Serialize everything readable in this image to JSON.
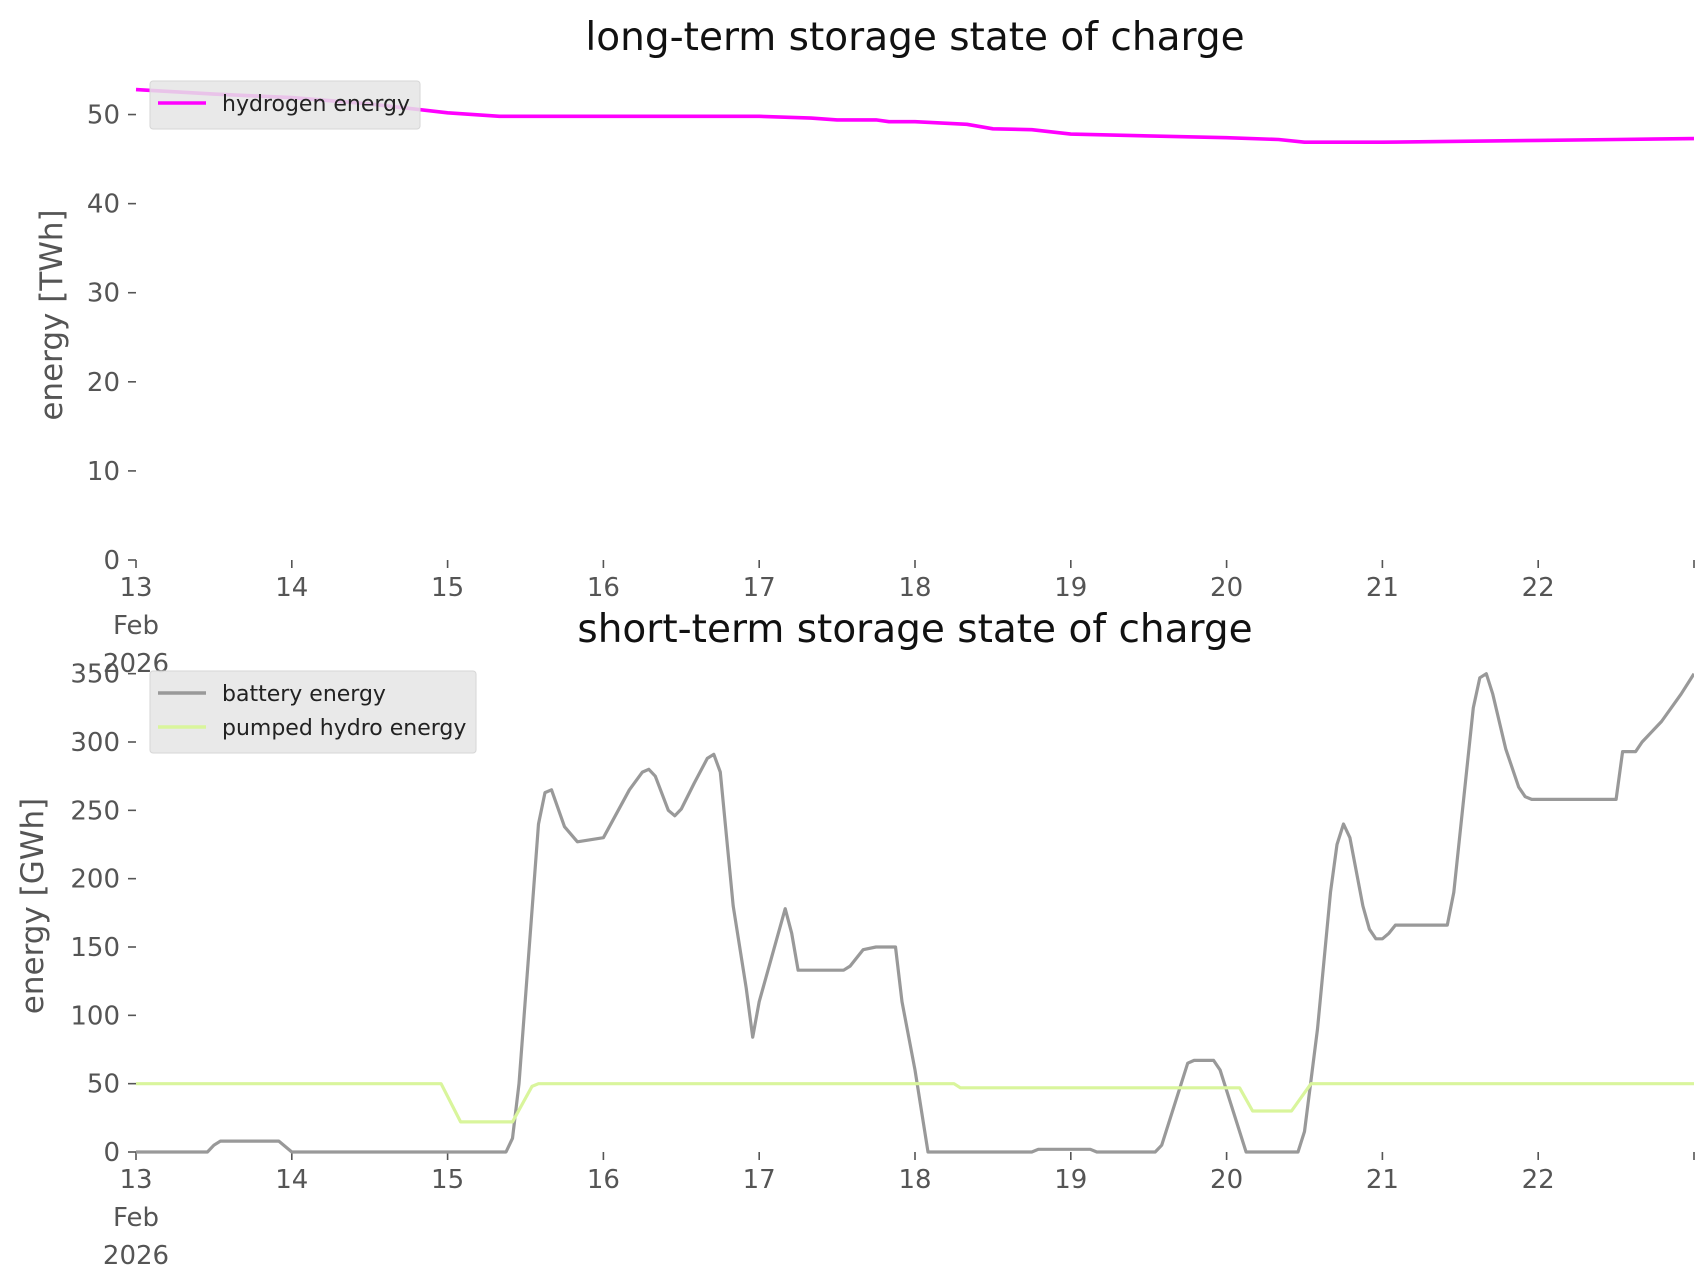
{
  "chart_data": [
    {
      "type": "line",
      "title": "long-term storage state of charge",
      "xlabel": "",
      "ylabel": "energy [TWh]",
      "x_range": [
        "2026-02-13",
        "2026-02-23"
      ],
      "ylim": [
        0,
        55
      ],
      "y_ticks": [
        "0",
        "10",
        "20",
        "30",
        "40",
        "50"
      ],
      "x_tick_labels": [
        "13\nFeb\n2026",
        "14",
        "15",
        "16",
        "17",
        "18",
        "19",
        "20",
        "21",
        "22"
      ],
      "grid": false,
      "legend_position": "top-left",
      "series": [
        {
          "name": "hydrogen energy",
          "color": "#ff00ff",
          "points": [
            [
              "2026-02-13 00:00",
              52.8
            ],
            [
              "2026-02-13 12:00",
              52.3
            ],
            [
              "2026-02-14 00:00",
              51.9
            ],
            [
              "2026-02-14 12:00",
              51.2
            ],
            [
              "2026-02-15 00:00",
              50.2
            ],
            [
              "2026-02-15 08:00",
              49.8
            ],
            [
              "2026-02-16 00:00",
              49.8
            ],
            [
              "2026-02-16 12:00",
              49.8
            ],
            [
              "2026-02-17 00:00",
              49.8
            ],
            [
              "2026-02-17 08:00",
              49.6
            ],
            [
              "2026-02-17 12:00",
              49.4
            ],
            [
              "2026-02-17 18:00",
              49.4
            ],
            [
              "2026-02-17 20:00",
              49.2
            ],
            [
              "2026-02-18 00:00",
              49.2
            ],
            [
              "2026-02-18 08:00",
              48.9
            ],
            [
              "2026-02-18 12:00",
              48.4
            ],
            [
              "2026-02-18 18:00",
              48.3
            ],
            [
              "2026-02-19 00:00",
              47.8
            ],
            [
              "2026-02-19 12:00",
              47.6
            ],
            [
              "2026-02-19 18:00",
              47.5
            ],
            [
              "2026-02-20 00:00",
              47.4
            ],
            [
              "2026-02-20 08:00",
              47.2
            ],
            [
              "2026-02-20 12:00",
              46.9
            ],
            [
              "2026-02-21 00:00",
              46.9
            ],
            [
              "2026-02-21 12:00",
              47.0
            ],
            [
              "2026-02-22 00:00",
              47.1
            ],
            [
              "2026-02-22 12:00",
              47.2
            ],
            [
              "2026-02-23 00:00",
              47.3
            ]
          ]
        }
      ]
    },
    {
      "type": "line",
      "title": "short-term storage state of charge",
      "xlabel": "",
      "ylabel": "energy [GWh]",
      "x_range": [
        "2026-02-13",
        "2026-02-23"
      ],
      "ylim": [
        0,
        360
      ],
      "y_ticks": [
        "0",
        "50",
        "100",
        "150",
        "200",
        "250",
        "300",
        "350"
      ],
      "x_tick_labels": [
        "13\nFeb\n2026",
        "14",
        "15",
        "16",
        "17",
        "18",
        "19",
        "20",
        "21",
        "22"
      ],
      "grid": false,
      "legend_position": "top-left",
      "series": [
        {
          "name": "battery energy",
          "color": "#999999",
          "points": [
            [
              "2026-02-13 00:00",
              0
            ],
            [
              "2026-02-13 11:00",
              0
            ],
            [
              "2026-02-13 12:00",
              5
            ],
            [
              "2026-02-13 13:00",
              8
            ],
            [
              "2026-02-13 22:00",
              8
            ],
            [
              "2026-02-14 00:00",
              0
            ],
            [
              "2026-02-15 09:00",
              0
            ],
            [
              "2026-02-15 10:00",
              10
            ],
            [
              "2026-02-15 11:00",
              50
            ],
            [
              "2026-02-15 14:00",
              240
            ],
            [
              "2026-02-15 15:00",
              263
            ],
            [
              "2026-02-15 16:00",
              265
            ],
            [
              "2026-02-15 18:00",
              238
            ],
            [
              "2026-02-15 20:00",
              227
            ],
            [
              "2026-02-16 00:00",
              230
            ],
            [
              "2026-02-16 04:00",
              265
            ],
            [
              "2026-02-16 06:00",
              278
            ],
            [
              "2026-02-16 07:00",
              280
            ],
            [
              "2026-02-16 08:00",
              275
            ],
            [
              "2026-02-16 10:00",
              250
            ],
            [
              "2026-02-16 11:00",
              246
            ],
            [
              "2026-02-16 12:00",
              251
            ],
            [
              "2026-02-16 14:00",
              270
            ],
            [
              "2026-02-16 16:00",
              288
            ],
            [
              "2026-02-16 17:00",
              291
            ],
            [
              "2026-02-16 18:00",
              278
            ],
            [
              "2026-02-16 20:00",
              180
            ],
            [
              "2026-02-16 22:00",
              120
            ],
            [
              "2026-02-16 23:00",
              84
            ],
            [
              "2026-02-17 00:00",
              110
            ],
            [
              "2026-02-16 20:00",
              180
            ],
            [
              "2026-02-16 22:00",
              120
            ],
            [
              "2026-02-16 23:00",
              84
            ],
            [
              "2026-02-17 00:00",
              110
            ],
            [
              "2026-02-16 20:00",
              180
            ]
          ]
        }
      ]
    }
  ]
}
